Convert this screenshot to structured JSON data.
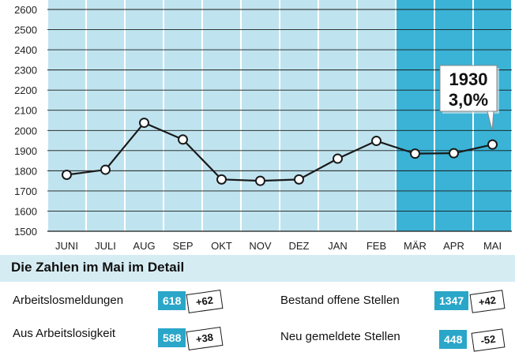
{
  "chart_data": {
    "type": "line",
    "categories": [
      "JUNI",
      "JULI",
      "AUG",
      "SEP",
      "OKT",
      "NOV",
      "DEZ",
      "JAN",
      "FEB",
      "MÄR",
      "APR",
      "MAI"
    ],
    "values": [
      1780,
      1805,
      2038,
      1955,
      1757,
      1750,
      1757,
      1860,
      1948,
      1885,
      1887,
      1930
    ],
    "ylim": [
      1500,
      2600
    ],
    "yticks": [
      1500,
      1600,
      1700,
      1800,
      1900,
      2000,
      2100,
      2200,
      2300,
      2400,
      2500,
      2600
    ],
    "grid": true,
    "highlight_categories": [
      "MÄR",
      "APR",
      "MAI"
    ],
    "callout": {
      "value": "1930",
      "rate": "3,0%"
    },
    "colors": {
      "bar_light": "#bfe4ef",
      "bar_highlight": "#3ab3d6",
      "line": "#1a1a1a"
    }
  },
  "detail": {
    "title": "Die Zahlen im Mai im Detail",
    "items": [
      {
        "label": "Arbeitslosmeldungen",
        "value": "618",
        "delta": "+62"
      },
      {
        "label": "Bestand offene Stellen",
        "value": "1347",
        "delta": "+42"
      },
      {
        "label": "Aus Arbeitslosigkeit",
        "value": "588",
        "delta": "+38"
      },
      {
        "label": "Neu gemeldete Stellen",
        "value": "448",
        "delta": "-52"
      }
    ]
  }
}
